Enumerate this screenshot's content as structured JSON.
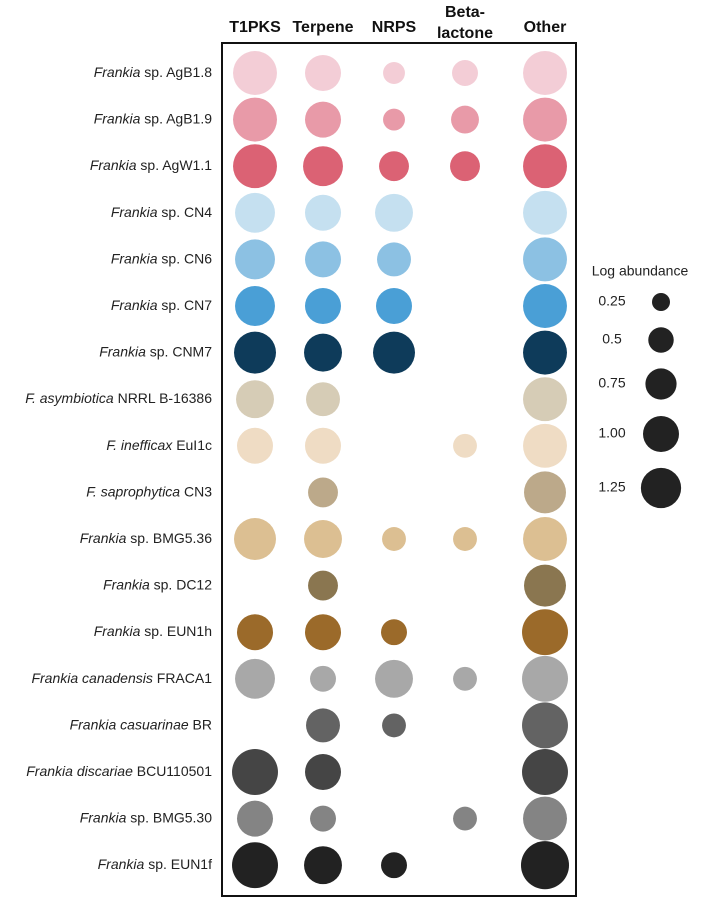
{
  "chart_data": {
    "type": "bubble",
    "categories": [
      "T1PKS",
      "Terpene",
      "NRPS",
      "Beta-lactone",
      "Other"
    ],
    "series": [
      {
        "name": {
          "italic": "Frankia",
          "text": "sp. AgB1.8"
        },
        "color": "#f3cdd6",
        "values": [
          1.49,
          1.0,
          0.37,
          0.52,
          1.49
        ]
      },
      {
        "name": {
          "italic": "Frankia",
          "text": "sp. AgB1.9"
        },
        "color": "#e89aa8",
        "values": [
          1.49,
          1.0,
          0.37,
          0.6,
          1.49
        ]
      },
      {
        "name": {
          "italic": "Frankia",
          "text": "sp. AgW1.1"
        },
        "color": "#db6274",
        "values": [
          1.49,
          1.23,
          0.69,
          0.69,
          1.49
        ]
      },
      {
        "name": {
          "italic": "Frankia",
          "text": "sp. CN4"
        },
        "color": "#c5e0f0",
        "values": [
          1.23,
          1.0,
          1.11,
          null,
          1.49
        ]
      },
      {
        "name": {
          "italic": "Frankia",
          "text": "sp. CN6"
        },
        "color": "#8cc1e3",
        "values": [
          1.23,
          1.0,
          0.89,
          null,
          1.49
        ]
      },
      {
        "name": {
          "italic": "Frankia",
          "text": "sp. CN7"
        },
        "color": "#4a9fd6",
        "values": [
          1.23,
          1.0,
          1.0,
          null,
          1.49
        ]
      },
      {
        "name": {
          "italic": "Frankia",
          "text": "sp. CNM7"
        },
        "color": "#0e3b5a",
        "values": [
          1.36,
          1.11,
          1.36,
          null,
          1.49
        ]
      },
      {
        "name": {
          "italic": "F. asymbiotica",
          "text": "NRRL B-16386"
        },
        "color": "#d6ccb6",
        "values": [
          1.11,
          0.89,
          null,
          null,
          1.49
        ]
      },
      {
        "name": {
          "italic": "F. inefficax",
          "text": "EuI1c"
        },
        "color": "#efdcc4",
        "values": [
          1.0,
          1.0,
          null,
          0.44,
          1.49
        ]
      },
      {
        "name": {
          "italic": "F. saprophytica",
          "text": "CN3"
        },
        "color": "#bca98a",
        "values": [
          null,
          0.69,
          null,
          null,
          1.36
        ]
      },
      {
        "name": {
          "italic": "Frankia",
          "text": "sp. BMG5.36"
        },
        "color": "#dcbf92",
        "values": [
          1.36,
          1.11,
          0.44,
          0.44,
          1.49
        ]
      },
      {
        "name": {
          "italic": "Frankia",
          "text": "sp. DC12"
        },
        "color": "#8a7650",
        "values": [
          null,
          0.69,
          null,
          null,
          1.36
        ]
      },
      {
        "name": {
          "italic": "Frankia",
          "text": "sp. EUN1h"
        },
        "color": "#9b6a2a",
        "values": [
          1.0,
          1.0,
          0.52,
          null,
          1.63
        ]
      },
      {
        "name": {
          "italic": "Frankia canadensis",
          "text": "FRACA1"
        },
        "color": "#a8a8a8",
        "values": [
          1.23,
          0.52,
          1.11,
          0.44,
          1.63
        ]
      },
      {
        "name": {
          "italic": "Frankia casuarinae",
          "text": "BR"
        },
        "color": "#636363",
        "values": [
          null,
          0.89,
          0.44,
          null,
          1.63
        ]
      },
      {
        "name": {
          "italic": "Frankia discariae",
          "text": "BCU110501"
        },
        "color": "#454545",
        "values": [
          1.63,
          1.0,
          null,
          null,
          1.63
        ]
      },
      {
        "name": {
          "italic": "Frankia",
          "text": "sp. BMG5.30"
        },
        "color": "#848484",
        "values": [
          1.0,
          0.52,
          null,
          0.44,
          1.49
        ]
      },
      {
        "name": {
          "italic": "Frankia",
          "text": "sp. EUN1f"
        },
        "color": "#222222",
        "values": [
          1.63,
          1.11,
          0.52,
          null,
          1.78
        ]
      }
    ],
    "legend": {
      "title": "Log abundance",
      "color": "#222222",
      "sizes": [
        0.25,
        0.5,
        0.75,
        {
          "value": 1,
          "label": "1.00"
        },
        1.25
      ]
    }
  }
}
